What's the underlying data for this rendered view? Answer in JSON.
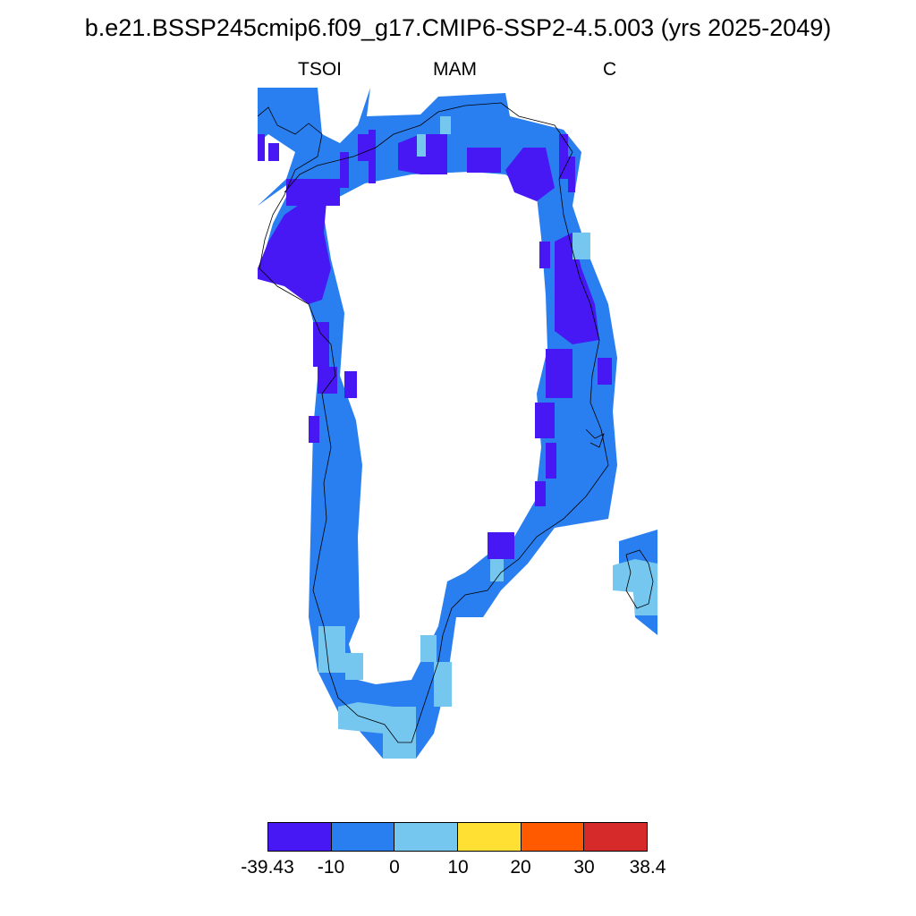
{
  "title": "b.e21.BSSP245cmip6.f09_g17.CMIP6-SSP2-4.5.003 (yrs 2025-2049)",
  "left_label": "TSOI",
  "center_label": "MAM",
  "right_label": "C",
  "colors": {
    "cold": "#4718f4",
    "cool": "#2a7ff0",
    "mild": "#76c7ef",
    "warm": "#ffe033",
    "hot": "#ff5a00",
    "hottest": "#d62a2a",
    "coast": "#000000"
  },
  "colorbar": {
    "colors": [
      "#4718f4",
      "#2a7ff0",
      "#76c7ef",
      "#ffe033",
      "#ff5a00",
      "#d62a2a"
    ],
    "labels": [
      "-39.43",
      "-10",
      "0",
      "10",
      "20",
      "30",
      "38.4"
    ]
  }
}
